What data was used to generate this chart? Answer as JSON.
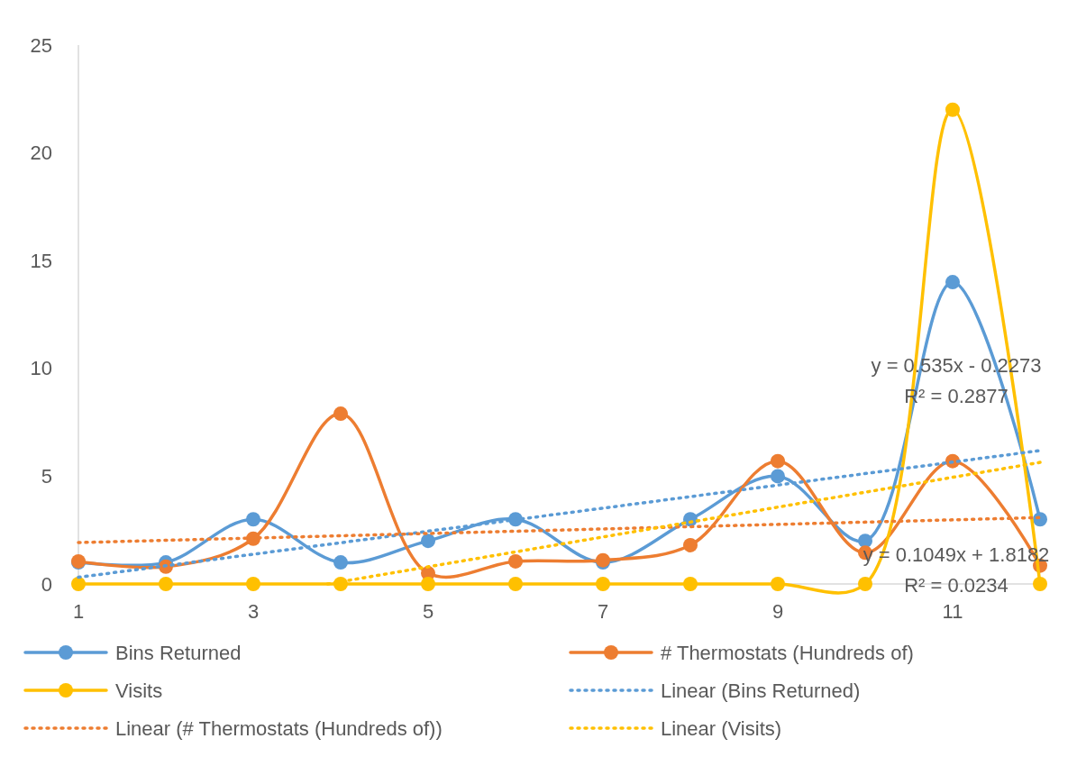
{
  "chart_data": {
    "type": "line",
    "x": [
      1,
      2,
      3,
      4,
      5,
      6,
      7,
      8,
      9,
      10,
      11,
      12
    ],
    "xlim": [
      1,
      12
    ],
    "xticks": [
      1,
      3,
      5,
      7,
      9,
      11
    ],
    "ylim": [
      0,
      25
    ],
    "yticks": [
      0,
      5,
      10,
      15,
      20,
      25
    ],
    "grid": false,
    "legend": "bottom",
    "marker": "circle",
    "line_style": "solid",
    "series": [
      {
        "name": "Bins Returned",
        "color": "#5b9bd5",
        "values": [
          1,
          1,
          3,
          1,
          2,
          3,
          1,
          3,
          5,
          2,
          14,
          3
        ]
      },
      {
        "name": "# Thermostats (Hundreds of)",
        "color": "#ed7d31",
        "values": [
          1.05,
          0.8,
          2.1,
          7.9,
          0.5,
          1.05,
          1.1,
          1.8,
          5.7,
          1.45,
          5.7,
          0.85
        ]
      },
      {
        "name": "Visits",
        "color": "#ffc000",
        "values": [
          0,
          0,
          0,
          0,
          0,
          0,
          0,
          0,
          0,
          0,
          22,
          0
        ]
      },
      {
        "name": "Linear (Bins Returned)",
        "color": "#5b9bd5",
        "x": [
          1,
          12
        ],
        "values": [
          0.31,
          6.19
        ],
        "marker": "none",
        "line_style": "dotted"
      },
      {
        "name": "Linear (# Thermostats (Hundreds of))",
        "color": "#ed7d31",
        "x": [
          1,
          12
        ],
        "values": [
          1.92,
          3.08
        ],
        "marker": "none",
        "line_style": "dotted"
      },
      {
        "name": "Linear (Visits)",
        "color": "#ffc000",
        "x": [
          3.85,
          12
        ],
        "values": [
          0,
          5.64
        ],
        "marker": "none",
        "line_style": "dotted"
      }
    ],
    "annotations": [
      "y = 0.535x - 0.2273",
      "R² = 0.2877",
      "y = 0.1049x + 1.8182",
      "R² = 0.0234"
    ]
  }
}
